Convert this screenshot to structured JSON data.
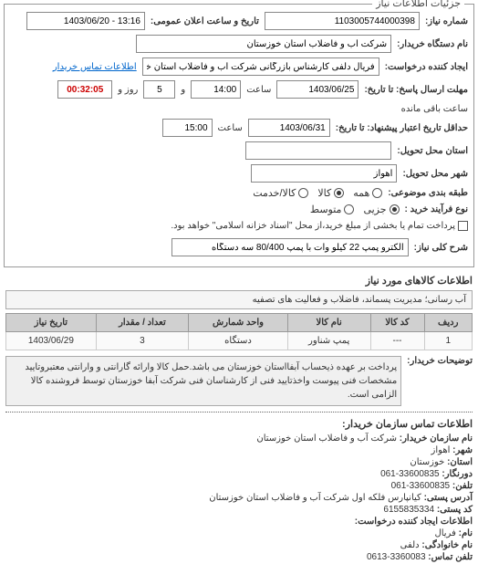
{
  "fieldset_legend": "جزئیات اطلاعات نیاز",
  "fields": {
    "request_no_label": "شماره نیاز:",
    "request_no": "1103005744000398",
    "announce_label": "تاریخ و ساعت اعلان عمومی:",
    "announce_val": "13:16 - 1403/06/20",
    "buyer_label": "نام دستگاه خریدار:",
    "buyer_val": "شرکت آب و فاضلاب استان خوزستان",
    "creator_label": "ایجاد کننده درخواست:",
    "creator_val": "فریال دلفی کارشناس بازرگانی شرکت آب و فاضلاب استان خوزستان",
    "contact_link": "اطلاعات تماس خریدار",
    "deadline_label": "مهلت ارسال پاسخ: تا تاریخ:",
    "deadline_date": "1403/06/25",
    "time_lbl": "ساعت",
    "deadline_time": "14:00",
    "and_lbl": "و",
    "days_val": "5",
    "days_lbl": "روز و",
    "remain_lbl": "ساعت باقی مانده",
    "remain_time": "00:32:05",
    "valid_label": "حداقل تاریخ اعتبار پیشنهاد: تا تاریخ:",
    "valid_date": "1403/06/31",
    "valid_time": "15:00",
    "delivery_loc_label": "استان محل تحویل:",
    "delivery_city_label": "شهر محل تحویل:",
    "delivery_city_val": "اهواز",
    "category_label": "طبقه بندی موضوعی:",
    "cat_all": "همه",
    "cat_goods": "کالا",
    "cat_svc": "کالا/خدمت",
    "process_label": "نوع فرآیند خرید :",
    "proc_small": "جزیی",
    "proc_med": "متوسط",
    "proc_note": "پرداخت تمام یا بخشی از مبلغ خرید،از محل \"اسناد خزانه اسلامی\" خواهد بود.",
    "summary_label": "شرح کلی نیاز:",
    "summary_val": "الکترو پمپ 22 کیلو وات با پمپ 80/400 سه دستگاه"
  },
  "goods": {
    "title": "اطلاعات کالاهای مورد نیاز",
    "category": "آب رسانی؛ مدیریت پسماند، فاضلاب و فعالیت های تصفیه",
    "headers": {
      "row": "ردیف",
      "code": "کد کالا",
      "name": "نام کالا",
      "unit": "واحد شمارش",
      "qty": "تعداد / مقدار",
      "date": "تاریخ نیاز"
    },
    "rows": [
      {
        "idx": "1",
        "code": "---",
        "name": "پمپ شناور",
        "unit": "دستگاه",
        "qty": "3",
        "date": "1403/06/29"
      }
    ]
  },
  "desc": {
    "label": "توضیحات خریدار:",
    "body": "پرداخت بر عهده ذیحساب آبفااستان خوزستان می باشد.حمل کالا وارائه گارانتی و وارانتی معتبروتایید مشخصات فنی پیوست واخذتایید فنی از کارشناسان فنی شرکت آبفا خوزستان توسط فروشنده کالا الزامی است."
  },
  "contact": {
    "title": "اطلاعات تماس سازمان خریدار:",
    "org_lbl": "نام سازمان خریدار:",
    "org": "شرکت آب و فاضلاب استان خوزستان",
    "city_lbl": "شهر:",
    "city": "اهواز",
    "prov_lbl": "استان:",
    "prov": "خوزستان",
    "fax_lbl": "دورنگار:",
    "fax": "33600835-061",
    "tel_lbl": "تلفن:",
    "tel": "33600835-061",
    "addr_lbl": "آدرس پستی:",
    "addr": "کیانپارس فلکه اول شرکت آب و فاضلاب استان خوزستان",
    "post_lbl": "کد پستی:",
    "post": "6155835334",
    "creator2_lbl": "اطلاعات ایجاد کننده درخواست:",
    "fname_lbl": "نام:",
    "fname": "فریال",
    "lname_lbl": "نام خانوادگی:",
    "lname": "دلفی",
    "ctel_lbl": "تلفن تماس:",
    "ctel": "3360083-0613"
  }
}
